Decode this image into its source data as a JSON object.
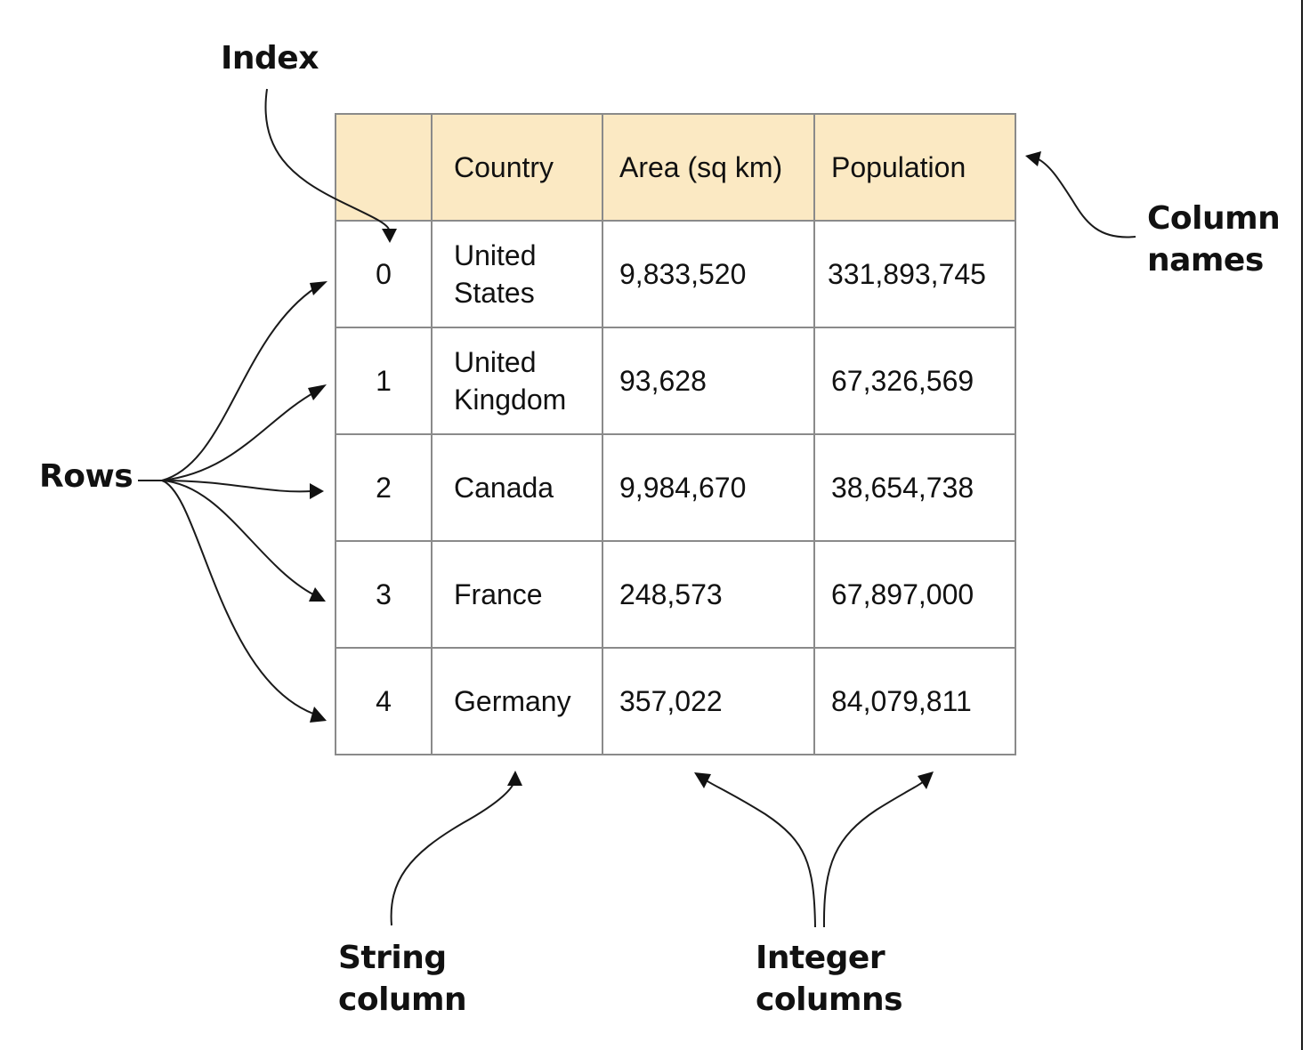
{
  "labels": {
    "index": "Index",
    "column_names": [
      "Column",
      "names"
    ],
    "rows": "Rows",
    "string_column": [
      "String",
      "column"
    ],
    "integer_columns": [
      "Integer",
      "columns"
    ]
  },
  "table": {
    "headers": [
      "",
      "Country",
      "Area (sq km)",
      "Population"
    ],
    "rows": [
      {
        "index": "0",
        "country": [
          "United",
          "States"
        ],
        "area": "9,833,520",
        "population": "331,893,745"
      },
      {
        "index": "1",
        "country": [
          "United",
          "Kingdom"
        ],
        "area": "93,628",
        "population": "67,326,569"
      },
      {
        "index": "2",
        "country": [
          "Canada"
        ],
        "area": "9,984,670",
        "population": "38,654,738"
      },
      {
        "index": "3",
        "country": [
          "France"
        ],
        "area": "248,573",
        "population": "67,897,000"
      },
      {
        "index": "4",
        "country": [
          "Germany"
        ],
        "area": "357,022",
        "population": "84,079,811"
      }
    ]
  }
}
